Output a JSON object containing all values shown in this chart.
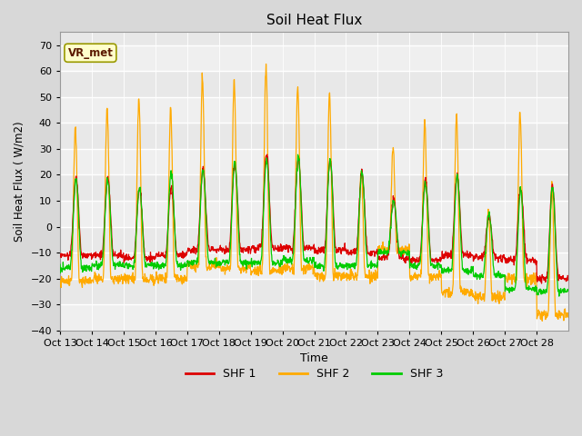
{
  "title": "Soil Heat Flux",
  "xlabel": "Time",
  "ylabel": "Soil Heat Flux ( W/m2)",
  "ylim": [
    -40,
    75
  ],
  "yticks": [
    -40,
    -30,
    -20,
    -10,
    0,
    10,
    20,
    30,
    40,
    50,
    60,
    70
  ],
  "fig_bg_color": "#d8d8d8",
  "plot_bg_color": "#e8e8e8",
  "colors": {
    "SHF 1": "#dd0000",
    "SHF 2": "#ffaa00",
    "SHF 3": "#00cc00"
  },
  "annotation_text": "VR_met",
  "annotation_bg": "#ffffcc",
  "annotation_border": "#999900",
  "xtick_labels": [
    "Oct 13",
    "Oct 14",
    "Oct 15",
    "Oct 16",
    "Oct 17",
    "Oct 18",
    "Oct 19",
    "Oct 20",
    "Oct 21",
    "Oct 22",
    "Oct 23",
    "Oct 24",
    "Oct 25",
    "Oct 26",
    "Oct 27",
    "Oct 28"
  ],
  "num_days": 16,
  "points_per_day": 96,
  "shf2_peaks": [
    38,
    46,
    50,
    46,
    57,
    56,
    61,
    54,
    51,
    21,
    30,
    40,
    43,
    6,
    44,
    16
  ],
  "shf2_troughs": [
    -21,
    -20,
    -20,
    -20,
    -15,
    -16,
    -17,
    -16,
    -19,
    -19,
    -9,
    -19,
    -25,
    -27,
    -20,
    -34
  ],
  "shf1_peaks": [
    19,
    19,
    15,
    15,
    22,
    24,
    28,
    26,
    26,
    21,
    11,
    18,
    20,
    4,
    15,
    16
  ],
  "shf1_troughs": [
    -11,
    -11,
    -12,
    -11,
    -9,
    -9,
    -8,
    -8,
    -9,
    -10,
    -12,
    -13,
    -11,
    -12,
    -13,
    -20
  ],
  "shf3_peaks": [
    18,
    18,
    15,
    21,
    22,
    25,
    26,
    27,
    26,
    21,
    10,
    17,
    19,
    5,
    14,
    15
  ],
  "shf3_troughs": [
    -16,
    -15,
    -15,
    -15,
    -14,
    -14,
    -14,
    -13,
    -15,
    -15,
    -10,
    -15,
    -17,
    -19,
    -24,
    -25
  ]
}
